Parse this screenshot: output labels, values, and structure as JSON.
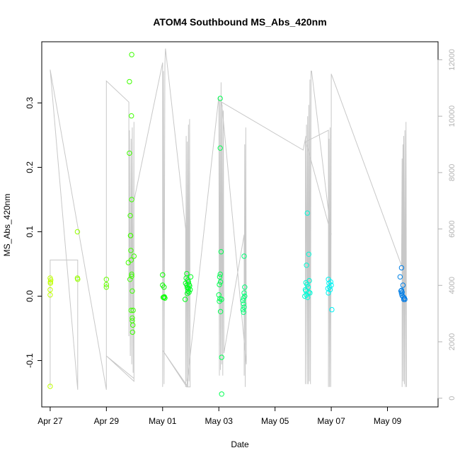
{
  "chart_data": {
    "type": "scatter",
    "title": "ATOM4 Southbound MS_Abs_420nm",
    "xlabel": "Date",
    "ylabel": "MS_Abs_420nm",
    "x_ticks": [
      "Apr 27",
      "Apr 29",
      "May 01",
      "May 03",
      "May 05",
      "May 07",
      "May 09"
    ],
    "y_ticks": [
      "-0.1",
      "0.0",
      "0.1",
      "0.2",
      "0.3"
    ],
    "y2_ticks": [
      "0",
      "2000",
      "4000",
      "6000",
      "8000",
      "10000",
      "12000"
    ],
    "xlim_days": [
      -0.3,
      13.8
    ],
    "ylim": [
      -0.172,
      0.395
    ],
    "y2lim": [
      -310,
      12640
    ],
    "grid": false,
    "points": [
      {
        "x": 0.0,
        "y": -0.14
      },
      {
        "x": 0.0,
        "y": 0.028
      },
      {
        "x": 0.02,
        "y": 0.025
      },
      {
        "x": 0.01,
        "y": 0.02
      },
      {
        "x": 0.0,
        "y": 0.01
      },
      {
        "x": 0.0,
        "y": 0.002
      },
      {
        "x": 0.01,
        "y": 0.022
      },
      {
        "x": 0.97,
        "y": 0.1
      },
      {
        "x": 0.97,
        "y": 0.028
      },
      {
        "x": 0.98,
        "y": 0.026
      },
      {
        "x": 2.0,
        "y": 0.026
      },
      {
        "x": 2.0,
        "y": 0.018
      },
      {
        "x": 2.0,
        "y": 0.014
      },
      {
        "x": 2.78,
        "y": 0.052
      },
      {
        "x": 2.82,
        "y": 0.333
      },
      {
        "x": 2.82,
        "y": 0.222
      },
      {
        "x": 2.85,
        "y": 0.125
      },
      {
        "x": 2.86,
        "y": 0.094
      },
      {
        "x": 2.86,
        "y": 0.094
      },
      {
        "x": 2.84,
        "y": 0.026
      },
      {
        "x": 2.9,
        "y": 0.375
      },
      {
        "x": 2.89,
        "y": 0.28
      },
      {
        "x": 2.9,
        "y": 0.15
      },
      {
        "x": 2.87,
        "y": 0.071
      },
      {
        "x": 2.88,
        "y": 0.056
      },
      {
        "x": 2.9,
        "y": 0.034
      },
      {
        "x": 2.9,
        "y": 0.031
      },
      {
        "x": 2.92,
        "y": 0.008
      },
      {
        "x": 2.88,
        "y": -0.022
      },
      {
        "x": 2.92,
        "y": -0.034
      },
      {
        "x": 2.92,
        "y": -0.038
      },
      {
        "x": 2.95,
        "y": -0.022
      },
      {
        "x": 2.93,
        "y": -0.056
      },
      {
        "x": 2.98,
        "y": 0.062
      },
      {
        "x": 2.94,
        "y": -0.045
      },
      {
        "x": 4.0,
        "y": 0.033
      },
      {
        "x": 4.0,
        "y": 0.017
      },
      {
        "x": 4.05,
        "y": 0.014
      },
      {
        "x": 4.02,
        "y": -0.002
      },
      {
        "x": 4.05,
        "y": -0.002
      },
      {
        "x": 4.08,
        "y": -0.003
      },
      {
        "x": 4.06,
        "y": -0.001
      },
      {
        "x": 4.8,
        "y": -0.005
      },
      {
        "x": 4.82,
        "y": 0.02
      },
      {
        "x": 4.84,
        "y": 0.028
      },
      {
        "x": 4.86,
        "y": 0.035
      },
      {
        "x": 4.86,
        "y": 0.017
      },
      {
        "x": 4.88,
        "y": 0.013
      },
      {
        "x": 4.88,
        "y": 0.004
      },
      {
        "x": 4.9,
        "y": 0.025
      },
      {
        "x": 4.9,
        "y": 0.008
      },
      {
        "x": 4.92,
        "y": 0.022
      },
      {
        "x": 4.92,
        "y": 0.012
      },
      {
        "x": 4.94,
        "y": 0.006
      },
      {
        "x": 4.96,
        "y": 0.016
      },
      {
        "x": 4.98,
        "y": 0.01
      },
      {
        "x": 5.0,
        "y": 0.03
      },
      {
        "x": 4.94,
        "y": 0.018
      },
      {
        "x": 6.05,
        "y": 0.307
      },
      {
        "x": 6.05,
        "y": 0.23
      },
      {
        "x": 6.08,
        "y": 0.069
      },
      {
        "x": 6.05,
        "y": 0.034
      },
      {
        "x": 6.03,
        "y": 0.03
      },
      {
        "x": 6.06,
        "y": 0.022
      },
      {
        "x": 6.02,
        "y": 0.018
      },
      {
        "x": 6.0,
        "y": 0.002
      },
      {
        "x": 6.04,
        "y": -0.004
      },
      {
        "x": 6.1,
        "y": -0.005
      },
      {
        "x": 6.02,
        "y": -0.008
      },
      {
        "x": 6.06,
        "y": -0.024
      },
      {
        "x": 6.1,
        "y": -0.095
      },
      {
        "x": 6.1,
        "y": -0.152
      },
      {
        "x": 6.9,
        "y": 0.062
      },
      {
        "x": 6.92,
        "y": 0.014
      },
      {
        "x": 6.9,
        "y": 0.005
      },
      {
        "x": 6.88,
        "y": -0.003
      },
      {
        "x": 6.86,
        "y": -0.007
      },
      {
        "x": 6.88,
        "y": -0.012
      },
      {
        "x": 6.9,
        "y": -0.017
      },
      {
        "x": 6.86,
        "y": -0.021
      },
      {
        "x": 6.88,
        "y": -0.025
      },
      {
        "x": 6.92,
        "y": 0.0
      },
      {
        "x": 9.15,
        "y": 0.129
      },
      {
        "x": 9.2,
        "y": 0.065
      },
      {
        "x": 9.12,
        "y": 0.048
      },
      {
        "x": 9.1,
        "y": 0.021
      },
      {
        "x": 9.14,
        "y": 0.018
      },
      {
        "x": 9.18,
        "y": 0.014
      },
      {
        "x": 9.08,
        "y": 0.01
      },
      {
        "x": 9.2,
        "y": 0.006
      },
      {
        "x": 9.12,
        "y": 0.002
      },
      {
        "x": 9.06,
        "y": 0.0
      },
      {
        "x": 9.22,
        "y": 0.024
      },
      {
        "x": 9.16,
        "y": -0.002
      },
      {
        "x": 9.24,
        "y": 0.005
      },
      {
        "x": 9.1,
        "y": 0.008
      },
      {
        "x": 9.9,
        "y": 0.026
      },
      {
        "x": 9.92,
        "y": 0.02
      },
      {
        "x": 9.94,
        "y": 0.014
      },
      {
        "x": 9.88,
        "y": 0.012
      },
      {
        "x": 9.96,
        "y": 0.01
      },
      {
        "x": 9.98,
        "y": 0.022
      },
      {
        "x": 10.0,
        "y": 0.017
      },
      {
        "x": 10.02,
        "y": -0.021
      },
      {
        "x": 9.9,
        "y": 0.005
      },
      {
        "x": 12.5,
        "y": 0.044
      },
      {
        "x": 12.45,
        "y": 0.03
      },
      {
        "x": 12.48,
        "y": 0.008
      },
      {
        "x": 12.5,
        "y": 0.004
      },
      {
        "x": 12.52,
        "y": 0.001
      },
      {
        "x": 12.55,
        "y": 0.017
      },
      {
        "x": 12.56,
        "y": -0.001
      },
      {
        "x": 12.6,
        "y": -0.003
      },
      {
        "x": 12.58,
        "y": -0.005
      },
      {
        "x": 12.52,
        "y": 0.006
      },
      {
        "x": 12.62,
        "y": -0.005
      },
      {
        "x": 12.5,
        "y": 0.009
      }
    ],
    "y2_track": [
      [
        0.0,
        400
      ],
      [
        0.0,
        4900
      ],
      [
        0.98,
        4900
      ],
      [
        0.98,
        300
      ],
      [
        0.0,
        11650
      ],
      [
        2.0,
        300
      ],
      [
        2.0,
        11250
      ],
      [
        2.8,
        10500
      ],
      [
        2.8,
        2200
      ],
      [
        2.82,
        9500
      ],
      [
        2.85,
        1500
      ],
      [
        2.88,
        9200
      ],
      [
        2.9,
        1200
      ],
      [
        2.92,
        9600
      ],
      [
        2.95,
        900
      ],
      [
        2.98,
        9800
      ],
      [
        2.98,
        700
      ],
      [
        2.0,
        1500
      ],
      [
        2.98,
        600
      ],
      [
        2.98,
        7000
      ],
      [
        4.0,
        11900
      ],
      [
        4.0,
        400
      ],
      [
        4.03,
        11600
      ],
      [
        4.05,
        500
      ],
      [
        4.08,
        11800
      ],
      [
        4.1,
        12400
      ],
      [
        4.82,
        6000
      ],
      [
        4.82,
        400
      ],
      [
        4.84,
        9300
      ],
      [
        4.86,
        600
      ],
      [
        4.88,
        9100
      ],
      [
        4.9,
        400
      ],
      [
        4.92,
        9700
      ],
      [
        4.94,
        600
      ],
      [
        4.96,
        9900
      ],
      [
        4.98,
        400
      ],
      [
        4.9,
        400
      ],
      [
        4.0,
        1700
      ],
      [
        4.86,
        400
      ],
      [
        6.0,
        10700
      ],
      [
        6.02,
        800
      ],
      [
        6.04,
        10600
      ],
      [
        6.06,
        1000
      ],
      [
        6.08,
        11200
      ],
      [
        6.1,
        1200
      ],
      [
        6.12,
        10400
      ],
      [
        6.14,
        800
      ],
      [
        6.16,
        10200
      ],
      [
        6.18,
        1600
      ],
      [
        6.9,
        5800
      ],
      [
        6.9,
        800
      ],
      [
        6.92,
        9000
      ],
      [
        6.94,
        400
      ],
      [
        6.96,
        9600
      ],
      [
        6.98,
        1200
      ],
      [
        6.1,
        10500
      ],
      [
        9.0,
        8800
      ],
      [
        9.1,
        9300
      ],
      [
        9.08,
        9200
      ],
      [
        9.08,
        500
      ],
      [
        9.12,
        9700
      ],
      [
        9.14,
        500
      ],
      [
        9.16,
        10000
      ],
      [
        9.18,
        500
      ],
      [
        9.2,
        10400
      ],
      [
        9.22,
        600
      ],
      [
        9.24,
        11300
      ],
      [
        9.26,
        500
      ],
      [
        9.28,
        11600
      ],
      [
        9.3,
        11600
      ],
      [
        10.0,
        5800
      ],
      [
        9.1,
        9100
      ],
      [
        9.9,
        9500
      ],
      [
        9.9,
        400
      ],
      [
        9.92,
        9200
      ],
      [
        9.94,
        400
      ],
      [
        9.96,
        9600
      ],
      [
        9.98,
        400
      ],
      [
        10.0,
        9900
      ],
      [
        10.0,
        11500
      ],
      [
        12.5,
        4700
      ],
      [
        12.52,
        8500
      ],
      [
        12.52,
        400
      ],
      [
        12.55,
        9000
      ],
      [
        12.56,
        600
      ],
      [
        12.58,
        9300
      ],
      [
        12.6,
        500
      ],
      [
        12.62,
        9500
      ],
      [
        12.64,
        400
      ],
      [
        12.66,
        9800
      ],
      [
        12.68,
        400
      ]
    ]
  }
}
